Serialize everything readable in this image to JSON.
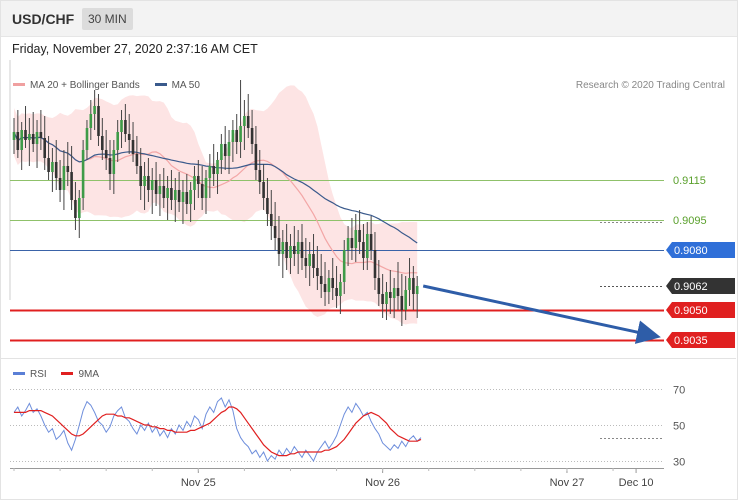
{
  "header": {
    "symbol": "USD/CHF",
    "timeframe": "30 MIN"
  },
  "datetime": "Friday, November 27, 2020 2:37:16 AM CET",
  "legend": [
    {
      "label": "MA 20 + Bollinger Bands",
      "color": "#f0a0a0"
    },
    {
      "label": "MA 50",
      "color": "#3a5a8c"
    }
  ],
  "credit": "Research © 2020 Trading Central",
  "chart_data": [
    {
      "type": "candlestick",
      "title": "USD/CHF",
      "ylim": [
        0.9025,
        0.9175
      ],
      "levels": [
        {
          "value": 0.9115,
          "label": "0.9115",
          "kind": "resistance",
          "color": "#8fc16a"
        },
        {
          "value": 0.9095,
          "label": "0.9095",
          "kind": "resistance",
          "color": "#8fc16a"
        },
        {
          "value": 0.908,
          "label": "0.9080",
          "kind": "pivot",
          "color": "#2f6fd8"
        },
        {
          "value": 0.9062,
          "label": "0.9062",
          "kind": "last-price",
          "color": "#333333"
        },
        {
          "value": 0.905,
          "label": "0.9050",
          "kind": "support",
          "color": "#e02020"
        },
        {
          "value": 0.9035,
          "label": "0.9035",
          "kind": "support",
          "color": "#e02020"
        }
      ],
      "forecast_arrow": {
        "from": 0.9062,
        "to": 0.9035
      },
      "candles": [
        [
          0.9135,
          0.9146,
          0.9128,
          0.9139
        ],
        [
          0.9139,
          0.915,
          0.9126,
          0.913
        ],
        [
          0.913,
          0.9144,
          0.912,
          0.914
        ],
        [
          0.914,
          0.9152,
          0.9131,
          0.9135
        ],
        [
          0.9135,
          0.9146,
          0.9122,
          0.9138
        ],
        [
          0.9138,
          0.9149,
          0.9129,
          0.9133
        ],
        [
          0.9133,
          0.9145,
          0.9121,
          0.9139
        ],
        [
          0.9139,
          0.915,
          0.913,
          0.9136
        ],
        [
          0.9136,
          0.9147,
          0.912,
          0.9126
        ],
        [
          0.9126,
          0.9137,
          0.9115,
          0.9119
        ],
        [
          0.9119,
          0.9131,
          0.9109,
          0.9124
        ],
        [
          0.9124,
          0.9135,
          0.911,
          0.9116
        ],
        [
          0.9116,
          0.9125,
          0.9104,
          0.911
        ],
        [
          0.911,
          0.913,
          0.91,
          0.9122
        ],
        [
          0.9122,
          0.9134,
          0.9112,
          0.9119
        ],
        [
          0.9119,
          0.9132,
          0.91,
          0.9105
        ],
        [
          0.9105,
          0.9114,
          0.909,
          0.9096
        ],
        [
          0.9096,
          0.911,
          0.9086,
          0.9106
        ],
        [
          0.9106,
          0.9135,
          0.91,
          0.913
        ],
        [
          0.913,
          0.9145,
          0.9125,
          0.9141
        ],
        [
          0.9141,
          0.9155,
          0.9135,
          0.9148
        ],
        [
          0.9148,
          0.916,
          0.914,
          0.9152
        ],
        [
          0.9152,
          0.9158,
          0.9132,
          0.9137
        ],
        [
          0.9137,
          0.9146,
          0.9125,
          0.913
        ],
        [
          0.913,
          0.914,
          0.912,
          0.9126
        ],
        [
          0.9126,
          0.9135,
          0.911,
          0.9118
        ],
        [
          0.9118,
          0.9135,
          0.9108,
          0.913
        ],
        [
          0.913,
          0.9145,
          0.9124,
          0.9139
        ],
        [
          0.9139,
          0.915,
          0.9131,
          0.9145
        ],
        [
          0.9145,
          0.9153,
          0.9134,
          0.9138
        ],
        [
          0.9138,
          0.9148,
          0.9128,
          0.9135
        ],
        [
          0.9135,
          0.9144,
          0.9124,
          0.9128
        ],
        [
          0.9128,
          0.9137,
          0.9118,
          0.9122
        ],
        [
          0.9122,
          0.9131,
          0.9105,
          0.9112
        ],
        [
          0.9112,
          0.9124,
          0.91,
          0.9117
        ],
        [
          0.9117,
          0.9126,
          0.9104,
          0.911
        ],
        [
          0.911,
          0.9121,
          0.9098,
          0.9115
        ],
        [
          0.9115,
          0.9124,
          0.9102,
          0.9108
        ],
        [
          0.9108,
          0.9118,
          0.9097,
          0.9112
        ],
        [
          0.9112,
          0.9121,
          0.9101,
          0.9106
        ],
        [
          0.9106,
          0.9117,
          0.9095,
          0.9111
        ],
        [
          0.9111,
          0.912,
          0.91,
          0.9105
        ],
        [
          0.9105,
          0.9116,
          0.9094,
          0.911
        ],
        [
          0.911,
          0.9119,
          0.9099,
          0.9104
        ],
        [
          0.9104,
          0.9115,
          0.9093,
          0.9109
        ],
        [
          0.9109,
          0.9118,
          0.9098,
          0.9103
        ],
        [
          0.9103,
          0.9114,
          0.9094,
          0.911
        ],
        [
          0.911,
          0.9122,
          0.91,
          0.9117
        ],
        [
          0.9117,
          0.9125,
          0.9106,
          0.9113
        ],
        [
          0.9113,
          0.9122,
          0.91,
          0.9106
        ],
        [
          0.9106,
          0.912,
          0.9098,
          0.9116
        ],
        [
          0.9116,
          0.9128,
          0.9106,
          0.9122
        ],
        [
          0.9122,
          0.9133,
          0.9112,
          0.9118
        ],
        [
          0.9118,
          0.9129,
          0.9108,
          0.9125
        ],
        [
          0.9125,
          0.9138,
          0.9118,
          0.9133
        ],
        [
          0.9133,
          0.9142,
          0.912,
          0.9127
        ],
        [
          0.9127,
          0.914,
          0.9118,
          0.9134
        ],
        [
          0.9134,
          0.9145,
          0.9124,
          0.914
        ],
        [
          0.914,
          0.9148,
          0.9128,
          0.9134
        ],
        [
          0.9134,
          0.9165,
          0.9126,
          0.9142
        ],
        [
          0.9142,
          0.9155,
          0.913,
          0.9147
        ],
        [
          0.9147,
          0.9158,
          0.9136,
          0.9141
        ],
        [
          0.9141,
          0.915,
          0.9128,
          0.9133
        ],
        [
          0.9133,
          0.9142,
          0.9115,
          0.912
        ],
        [
          0.912,
          0.913,
          0.9108,
          0.9114
        ],
        [
          0.9114,
          0.9123,
          0.91,
          0.9106
        ],
        [
          0.9106,
          0.9116,
          0.9092,
          0.9098
        ],
        [
          0.9098,
          0.911,
          0.9085,
          0.9092
        ],
        [
          0.9092,
          0.9104,
          0.908,
          0.9086
        ],
        [
          0.9086,
          0.9097,
          0.9072,
          0.9078
        ],
        [
          0.9078,
          0.909,
          0.9066,
          0.9084
        ],
        [
          0.9084,
          0.9093,
          0.907,
          0.9076
        ],
        [
          0.9076,
          0.9088,
          0.9068,
          0.9082
        ],
        [
          0.9082,
          0.9092,
          0.9072,
          0.9078
        ],
        [
          0.9078,
          0.909,
          0.9068,
          0.9084
        ],
        [
          0.9084,
          0.9093,
          0.907,
          0.9076
        ],
        [
          0.9076,
          0.9086,
          0.9066,
          0.9072
        ],
        [
          0.9072,
          0.9084,
          0.9062,
          0.9078
        ],
        [
          0.9078,
          0.9088,
          0.9066,
          0.9071
        ],
        [
          0.9071,
          0.9082,
          0.906,
          0.9067
        ],
        [
          0.9067,
          0.9078,
          0.9056,
          0.9063
        ],
        [
          0.9063,
          0.9074,
          0.9052,
          0.9059
        ],
        [
          0.9059,
          0.907,
          0.9053,
          0.9066
        ],
        [
          0.9066,
          0.9076,
          0.9055,
          0.9061
        ],
        [
          0.9061,
          0.9072,
          0.9051,
          0.9057
        ],
        [
          0.9057,
          0.9068,
          0.9048,
          0.9064
        ],
        [
          0.9064,
          0.9085,
          0.9058,
          0.908
        ],
        [
          0.908,
          0.9092,
          0.9072,
          0.9086
        ],
        [
          0.9086,
          0.9096,
          0.9075,
          0.9081
        ],
        [
          0.9081,
          0.9098,
          0.9074,
          0.909
        ],
        [
          0.909,
          0.91,
          0.9078,
          0.9084
        ],
        [
          0.9084,
          0.9093,
          0.907,
          0.9076
        ],
        [
          0.9076,
          0.9094,
          0.907,
          0.9088
        ],
        [
          0.9088,
          0.9097,
          0.9075,
          0.908
        ],
        [
          0.908,
          0.9089,
          0.906,
          0.9066
        ],
        [
          0.9066,
          0.9075,
          0.9052,
          0.9058
        ],
        [
          0.9058,
          0.9068,
          0.9046,
          0.9053
        ],
        [
          0.9053,
          0.9064,
          0.9045,
          0.9059
        ],
        [
          0.9059,
          0.907,
          0.9048,
          0.9056
        ],
        [
          0.9056,
          0.9066,
          0.9046,
          0.9061
        ],
        [
          0.9061,
          0.9074,
          0.905,
          0.9057
        ],
        [
          0.9057,
          0.9068,
          0.9042,
          0.905
        ],
        [
          0.905,
          0.9067,
          0.9045,
          0.906
        ],
        [
          0.906,
          0.9076,
          0.9052,
          0.9066
        ],
        [
          0.9066,
          0.9072,
          0.905,
          0.9058
        ],
        [
          0.9058,
          0.9067,
          0.9046,
          0.9062
        ]
      ]
    },
    {
      "type": "line",
      "series": [
        {
          "name": "RSI",
          "color": "#5a7fd6"
        },
        {
          "name": "9MA",
          "color": "#e02020"
        }
      ],
      "ylim": [
        25,
        75
      ],
      "yticks": [
        70,
        50,
        30
      ],
      "x_labels": [
        {
          "label": "Nov 25",
          "index": 48
        },
        {
          "label": "Nov 26",
          "index": 96
        },
        {
          "label": "Nov 27",
          "index": 144
        },
        {
          "label": "Dec 10",
          "index": 162
        }
      ],
      "rsi": [
        57,
        60,
        55,
        58,
        62,
        57,
        59,
        55,
        50,
        46,
        48,
        42,
        44,
        47,
        40,
        36,
        42,
        50,
        58,
        63,
        61,
        57,
        52,
        50,
        46,
        49,
        55,
        58,
        60,
        54,
        52,
        48,
        45,
        50,
        47,
        51,
        46,
        49,
        44,
        47,
        43,
        48,
        45,
        50,
        47,
        52,
        49,
        55,
        53,
        48,
        56,
        60,
        57,
        63,
        65,
        60,
        64,
        58,
        48,
        43,
        40,
        38,
        34,
        36,
        32,
        35,
        30,
        33,
        31,
        36,
        33,
        37,
        34,
        38,
        35,
        32,
        36,
        33,
        30,
        35,
        38,
        41,
        37,
        40,
        44,
        50,
        56,
        60,
        57,
        62,
        59,
        55,
        57,
        52,
        48,
        45,
        40,
        38,
        36,
        39,
        37,
        41,
        38,
        42,
        44,
        41,
        43
      ],
      "ma9": [
        57,
        57,
        57,
        57,
        58,
        58,
        58,
        58,
        57,
        56,
        55,
        53,
        51,
        49,
        47,
        45,
        44,
        44,
        45,
        47,
        49,
        51,
        53,
        55,
        56,
        56,
        56,
        55,
        55,
        54,
        54,
        53,
        52,
        51,
        50,
        50,
        49,
        49,
        48,
        48,
        47,
        47,
        46,
        46,
        46,
        46,
        47,
        47,
        48,
        49,
        50,
        51,
        53,
        55,
        57,
        58,
        60,
        60,
        59,
        57,
        54,
        51,
        48,
        45,
        42,
        39,
        37,
        35,
        34,
        33,
        33,
        33,
        34,
        34,
        35,
        35,
        35,
        35,
        35,
        35,
        35,
        36,
        36,
        37,
        38,
        40,
        42,
        45,
        48,
        51,
        53,
        55,
        56,
        57,
        56,
        55,
        53,
        51,
        48,
        46,
        44,
        43,
        42,
        41,
        41,
        41,
        42
      ]
    }
  ]
}
